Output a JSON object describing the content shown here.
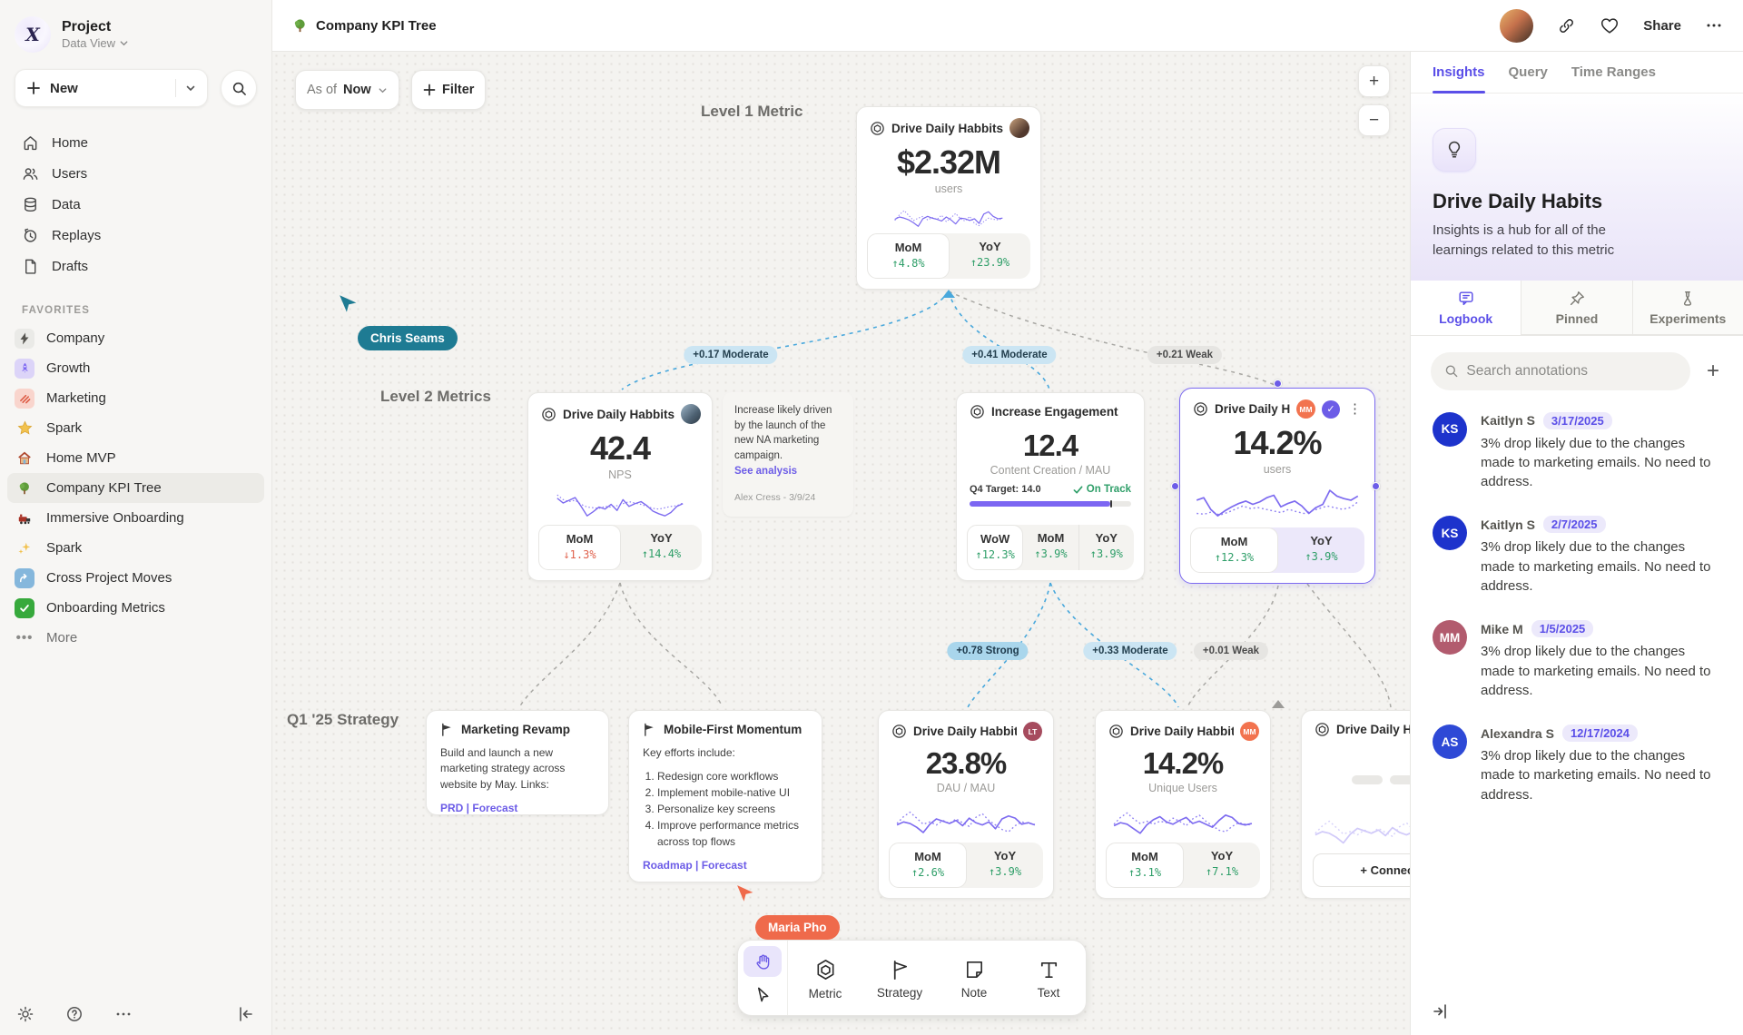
{
  "colors": {
    "accent": "#6C5CE7",
    "positive": "#2E9E68",
    "negative": "#E0614C",
    "edge_blue": "#49A8DC",
    "cursor_teal": "#1E7B93",
    "cursor_coral": "#EF6A4B"
  },
  "sidebar": {
    "project_name": "Project",
    "workspace": "Data View",
    "new_label": "New",
    "nav": [
      {
        "label": "Home"
      },
      {
        "label": "Users"
      },
      {
        "label": "Data"
      },
      {
        "label": "Replays"
      },
      {
        "label": "Drafts"
      }
    ],
    "favorites_title": "FAVORITES",
    "favorites": [
      {
        "label": "Company"
      },
      {
        "label": "Growth"
      },
      {
        "label": "Marketing"
      },
      {
        "label": "Spark"
      },
      {
        "label": "Home MVP"
      },
      {
        "label": "Company KPI Tree"
      },
      {
        "label": "Immersive Onboarding"
      },
      {
        "label": "Spark"
      },
      {
        "label": "Cross Project Moves"
      },
      {
        "label": "Onboarding Metrics"
      }
    ],
    "more_label": "More"
  },
  "header": {
    "title": "Company KPI Tree",
    "share": "Share"
  },
  "controls": {
    "as_of": "As of",
    "as_of_value": "Now",
    "filter": "Filter",
    "zoom_in": "+",
    "zoom_out": "−"
  },
  "labels": {
    "level1": "Level 1 Metric",
    "level2": "Level 2 Metrics",
    "strategy": "Q1 '25 Strategy"
  },
  "cursors": {
    "c1": "Chris Seams",
    "c2": "Maria Pho"
  },
  "edges": [
    {
      "label": "+0.17 Moderate",
      "strength": "moderate"
    },
    {
      "label": "+0.41 Moderate",
      "strength": "moderate"
    },
    {
      "label": "+0.21 Weak",
      "strength": "weak"
    },
    {
      "label": "+0.78 Strong",
      "strength": "strong"
    },
    {
      "label": "+0.33 Moderate",
      "strength": "moderate"
    },
    {
      "label": "+0.01 Weak",
      "strength": "weak"
    }
  ],
  "cards": {
    "level1": {
      "title": "Drive Daily Habbits",
      "value": "$2.32M",
      "unit": "users",
      "mom_label": "MoM",
      "mom": "↑4.8%",
      "yoy_label": "YoY",
      "yoy": "↑23.9%"
    },
    "nps": {
      "title": "Drive Daily Habbits",
      "value": "42.4",
      "unit": "NPS",
      "mom_label": "MoM",
      "mom": "↓1.3%",
      "yoy_label": "YoY",
      "yoy": "↑14.4%"
    },
    "note": {
      "text": "Increase likely driven by the launch of the new NA marketing campaign.",
      "link": "See analysis",
      "author": "Alex Cress - 3/9/24"
    },
    "engagement": {
      "title": "Increase Engagement",
      "value": "12.4",
      "unit": "Content Creation / MAU",
      "target": "Q4 Target: 14.0",
      "status": "On Track",
      "progress": 0.87,
      "wow_label": "WoW",
      "wow": "↑12.3%",
      "mom_label": "MoM",
      "mom": "↑3.9%",
      "yoy_label": "YoY",
      "yoy": "↑3.9%"
    },
    "selected": {
      "title": "Drive Daily Habb..",
      "badge": "MM",
      "value": "14.2%",
      "unit": "users",
      "mom_label": "MoM",
      "mom": "↑12.3%",
      "yoy_label": "YoY",
      "yoy": "↑3.9%"
    },
    "marketing": {
      "title": "Marketing Revamp",
      "body": "Build and launch a new marketing strategy across website by May. Links:",
      "links": "PRD | Forecast"
    },
    "mobile": {
      "title": "Mobile-First Momentum",
      "intro": "Key efforts include:",
      "item1": "Redesign core workflows",
      "item2": "Implement mobile-native UI",
      "item3": "Personalize key screens",
      "item4": "Improve performance metrics across top flows",
      "links": "Roadmap | Forecast"
    },
    "dau": {
      "title": "Drive Daily Habbits",
      "badge": "LT",
      "value": "23.8%",
      "unit": "DAU / MAU",
      "mom_label": "MoM",
      "mom": "↑2.6%",
      "yoy_label": "YoY",
      "yoy": "↑3.9%"
    },
    "unique": {
      "title": "Drive Daily Habbits",
      "badge": "MM",
      "value": "14.2%",
      "unit": "Unique Users",
      "mom_label": "MoM",
      "mom": "↑3.1%",
      "yoy_label": "YoY",
      "yoy": "↑7.1%"
    },
    "partial": {
      "title": "Drive Daily Hab",
      "connect": "+ Connect"
    }
  },
  "toolbar": {
    "metric": "Metric",
    "strategy": "Strategy",
    "note": "Note",
    "text": "Text"
  },
  "panel": {
    "tabs": [
      "Insights",
      "Query",
      "Time Ranges"
    ],
    "title": "Drive Daily Habits",
    "description": "Insights is a hub for all of the learnings related to this metric",
    "subtabs": [
      "Logbook",
      "Pinned",
      "Experiments"
    ],
    "search_placeholder": "Search annotations",
    "annotations": [
      {
        "initials": "KS",
        "name": "Kaitlyn S",
        "date": "3/17/2025",
        "text": "3% drop likely due to the changes made to marketing emails. No need to address."
      },
      {
        "initials": "KS",
        "name": "Kaitlyn S",
        "date": "2/7/2025",
        "text": "3% drop likely due to the changes made to marketing emails. No need to address."
      },
      {
        "initials": "MM",
        "name": "Mike M",
        "date": "1/5/2025",
        "text": "3% drop likely due to the changes made to marketing emails. No need to address."
      },
      {
        "initials": "AS",
        "name": "Alexandra S",
        "date": "12/17/2024",
        "text": "3% drop likely due to the changes made to marketing emails. No need to address."
      }
    ]
  },
  "sparklines": {
    "a": {
      "solid": [
        0.42,
        0.5,
        0.46,
        0.4,
        0.3,
        0.18,
        0.44,
        0.52,
        0.46,
        0.42,
        0.36,
        0.5,
        0.4,
        0.26,
        0.46,
        0.44,
        0.38,
        0.44,
        0.28,
        0.6,
        0.68,
        0.52,
        0.44,
        0.46
      ],
      "dotted": [
        0.38,
        0.58,
        0.72,
        0.55,
        0.38,
        0.46,
        0.52,
        0.4,
        0.48,
        0.42,
        0.56,
        0.34,
        0.48,
        0.62,
        0.44,
        0.36,
        0.52,
        0.28,
        0.2,
        0.34,
        0.46,
        0.42,
        0.4,
        0.44
      ]
    },
    "b": {
      "solid": [
        0.72,
        0.58,
        0.66,
        0.74,
        0.48,
        0.2,
        0.32,
        0.46,
        0.4,
        0.54,
        0.36,
        0.68,
        0.48,
        0.56,
        0.62,
        0.5,
        0.34,
        0.26,
        0.2,
        0.3,
        0.48,
        0.56
      ],
      "dotted": [
        0.82,
        0.68,
        0.62,
        0.66,
        0.54,
        0.46,
        0.44,
        0.42,
        0.48,
        0.46,
        0.5,
        0.56,
        0.62,
        0.58,
        0.54,
        0.48,
        0.42,
        0.4,
        0.44,
        0.48,
        0.5,
        0.58
      ]
    },
    "c": {
      "solid": [
        0.6,
        0.66,
        0.38,
        0.22,
        0.34,
        0.44,
        0.52,
        0.58,
        0.5,
        0.56,
        0.66,
        0.72,
        0.44,
        0.52,
        0.58,
        0.46,
        0.28,
        0.42,
        0.5,
        0.84,
        0.7,
        0.64,
        0.6,
        0.7
      ],
      "dotted": [
        0.28,
        0.26,
        0.32,
        0.24,
        0.3,
        0.38,
        0.46,
        0.4,
        0.42,
        0.38,
        0.34,
        0.3,
        0.38,
        0.32,
        0.28,
        0.34,
        0.4,
        0.46,
        0.42,
        0.38,
        0.42,
        0.56
      ]
    },
    "d": {
      "solid": [
        0.4,
        0.48,
        0.44,
        0.34,
        0.2,
        0.42,
        0.56,
        0.5,
        0.44,
        0.52,
        0.38,
        0.58,
        0.46,
        0.4,
        0.48,
        0.3,
        0.56,
        0.64,
        0.58,
        0.42,
        0.46,
        0.4
      ],
      "dotted": [
        0.44,
        0.62,
        0.74,
        0.58,
        0.42,
        0.48,
        0.4,
        0.52,
        0.44,
        0.56,
        0.46,
        0.36,
        0.6,
        0.7,
        0.52,
        0.4,
        0.28,
        0.22,
        0.38,
        0.48,
        0.44,
        0.42
      ]
    },
    "e": {
      "solid": [
        0.38,
        0.46,
        0.42,
        0.3,
        0.18,
        0.4,
        0.54,
        0.62,
        0.48,
        0.42,
        0.52,
        0.6,
        0.44,
        0.5,
        0.42,
        0.34,
        0.52,
        0.66,
        0.6,
        0.44,
        0.4,
        0.44
      ],
      "dotted": [
        0.42,
        0.6,
        0.72,
        0.56,
        0.44,
        0.5,
        0.42,
        0.5,
        0.46,
        0.58,
        0.5,
        0.38,
        0.56,
        0.66,
        0.5,
        0.38,
        0.26,
        0.22,
        0.36,
        0.46,
        0.42,
        0.4
      ]
    }
  }
}
